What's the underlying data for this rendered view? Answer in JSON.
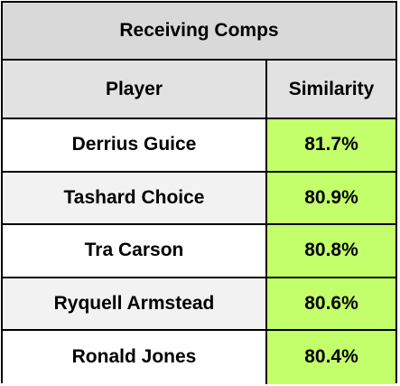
{
  "title": "Receiving Comps",
  "headers": {
    "player": "Player",
    "similarity": "Similarity"
  },
  "rows": [
    {
      "player": "Derrius Guice",
      "similarity": "81.7%"
    },
    {
      "player": "Tashard Choice",
      "similarity": "80.9%"
    },
    {
      "player": "Tra Carson",
      "similarity": "80.8%"
    },
    {
      "player": "Ryquell Armstead",
      "similarity": "80.6%"
    },
    {
      "player": "Ronald Jones",
      "similarity": "80.4%"
    }
  ],
  "colors": {
    "title_bg": "#d9d9d9",
    "header_bg": "#e2e2e2",
    "similarity_bg": "#c3ff6a",
    "alt_row_bg": "#f2f2f2",
    "border": "#000000"
  }
}
